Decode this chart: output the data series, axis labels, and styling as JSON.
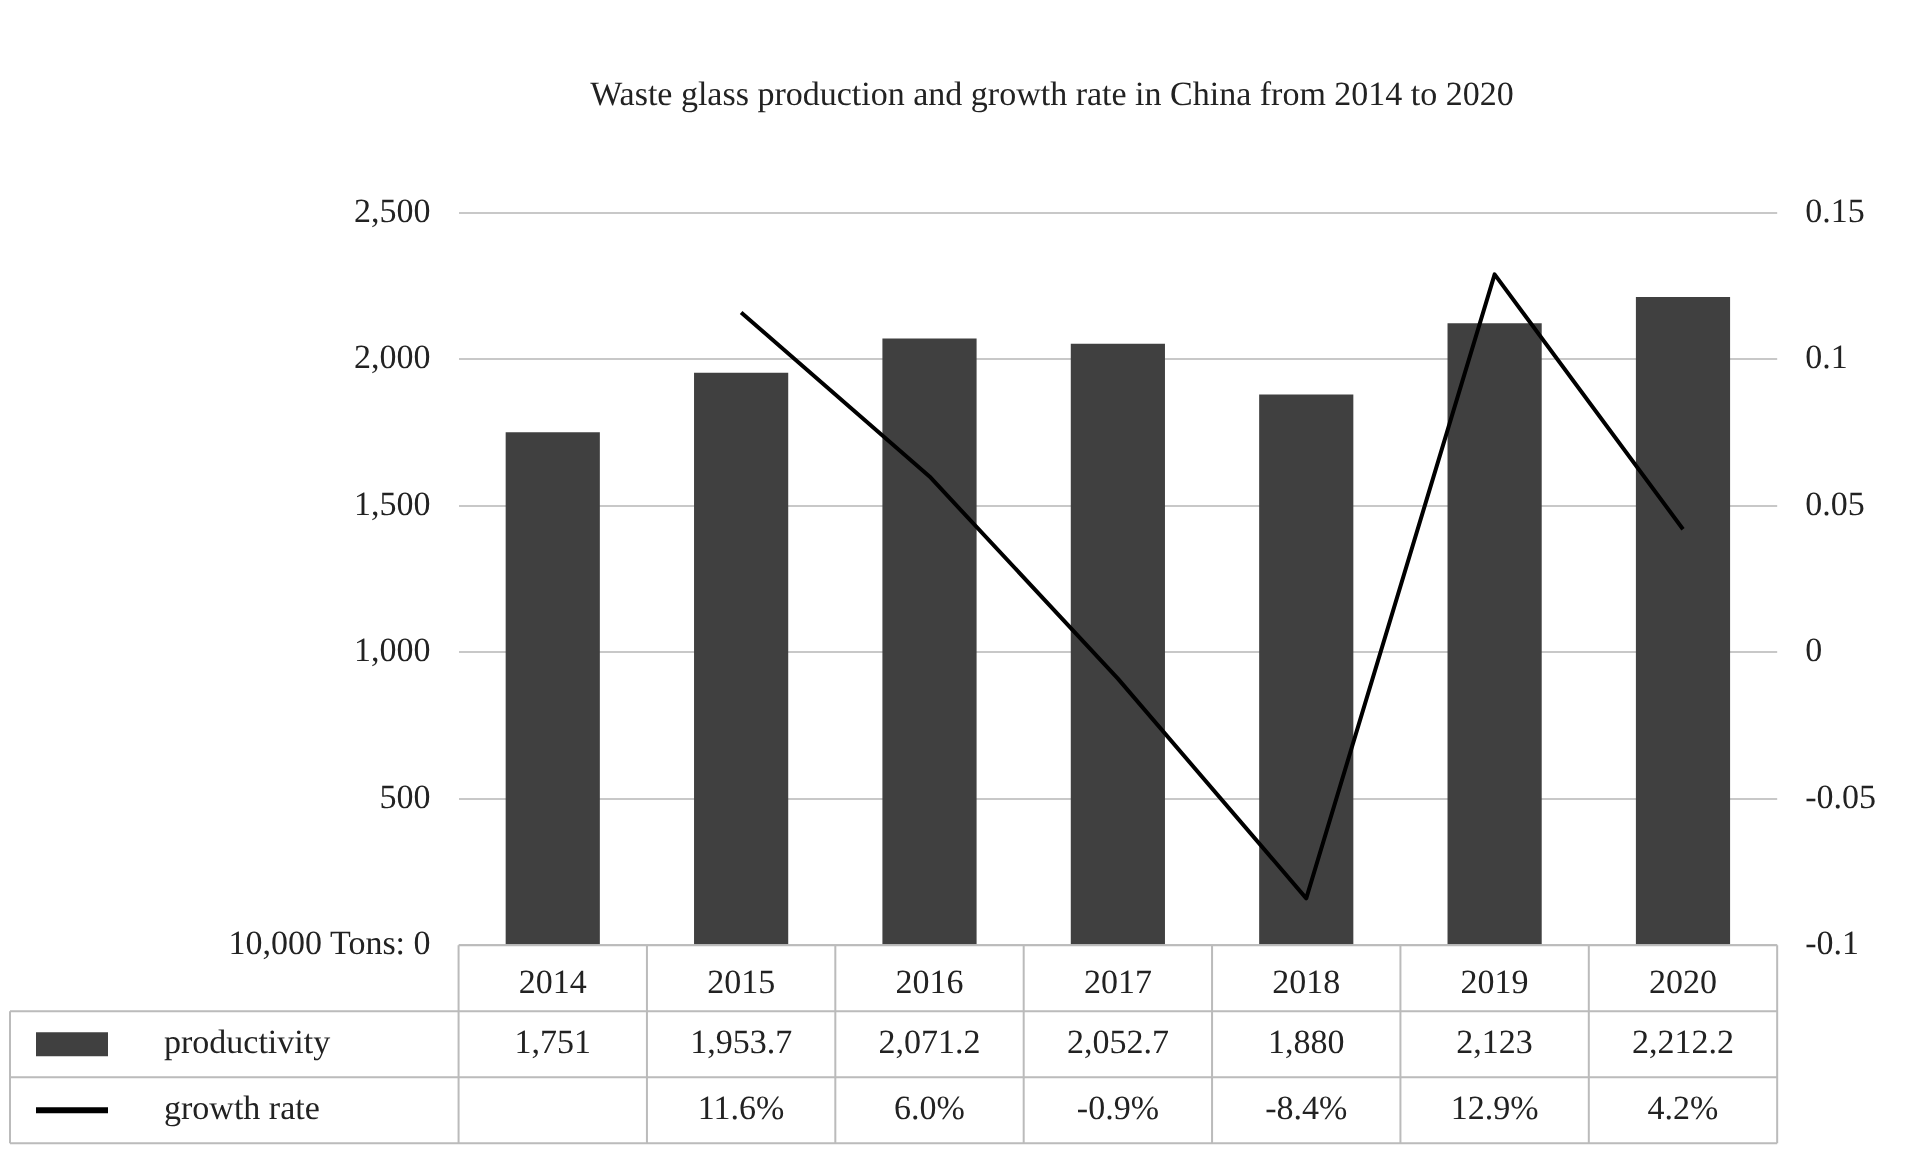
{
  "chart_data": {
    "type": "bar",
    "title": "Waste glass production and growth rate in China from 2014 to 2020",
    "categories": [
      "2014",
      "2015",
      "2016",
      "2017",
      "2018",
      "2019",
      "2020"
    ],
    "series": [
      {
        "name": "productivity",
        "color": "#404040",
        "values": [
          1751,
          1953.7,
          2071.2,
          2052.7,
          1880,
          2123,
          2212.2
        ],
        "value_labels": [
          "1,751",
          "1,953.7",
          "2,071.2",
          "2,052.7",
          "1,880",
          "2,123",
          "2,212.2"
        ]
      },
      {
        "name": "growth rate",
        "type": "line",
        "axis": "y2",
        "color": "#000000",
        "values": [
          null,
          0.116,
          0.06,
          -0.009,
          -0.084,
          0.129,
          0.042
        ],
        "value_labels": [
          null,
          "11.6%",
          "6.0%",
          "-0.9%",
          "-8.4%",
          "12.9%",
          "4.2%"
        ]
      }
    ],
    "ylim": [
      0,
      2500
    ],
    "yticks": [
      {
        "value": 0,
        "label": "10,000 Tons: 0"
      },
      {
        "value": 500,
        "label": "500"
      },
      {
        "value": 1000,
        "label": "1,000"
      },
      {
        "value": 1500,
        "label": "1,500"
      },
      {
        "value": 2000,
        "label": "2,000"
      },
      {
        "value": 2500,
        "label": "2,500"
      }
    ],
    "y2lim": [
      -0.1,
      0.15
    ],
    "y2ticks": [
      -0.1,
      -0.05,
      0,
      0.05,
      0.1,
      0.15
    ],
    "grid": "y",
    "legend": "bottom",
    "marker": "none",
    "line_style": "solid"
  }
}
